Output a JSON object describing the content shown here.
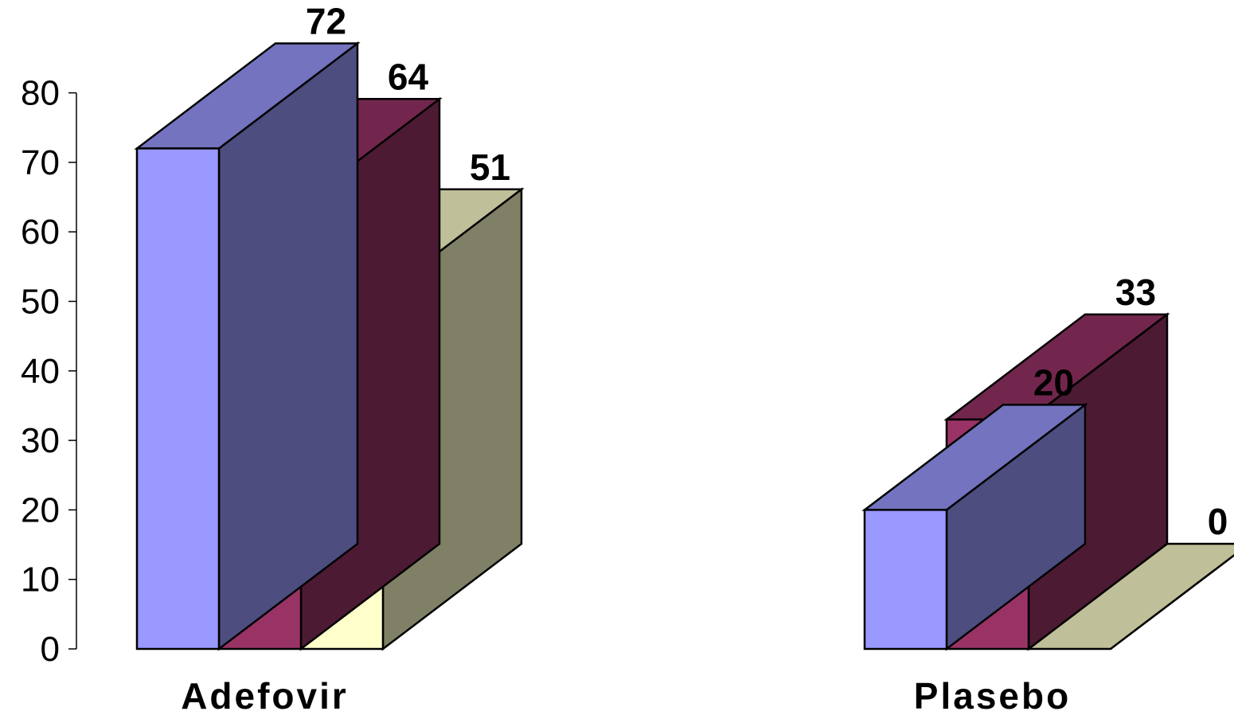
{
  "chart_data": {
    "type": "bar",
    "style": "3d-clustered-column",
    "categories": [
      "Adefovir",
      "Plasebo"
    ],
    "series": [
      {
        "values": [
          72,
          20
        ],
        "color": "#9999FF"
      },
      {
        "values": [
          64,
          33
        ],
        "color": "#993366"
      },
      {
        "values": [
          51,
          0
        ],
        "color": "#FFFFCC"
      }
    ],
    "data_labels": [
      [
        "72",
        "64",
        "51"
      ],
      [
        "20",
        "33",
        "0"
      ]
    ],
    "ylim": [
      0,
      80
    ],
    "yticks": [
      0,
      10,
      20,
      30,
      40,
      50,
      60,
      70,
      80
    ],
    "grid": false,
    "legend": "none",
    "title": "",
    "xlabel": "",
    "ylabel": ""
  }
}
